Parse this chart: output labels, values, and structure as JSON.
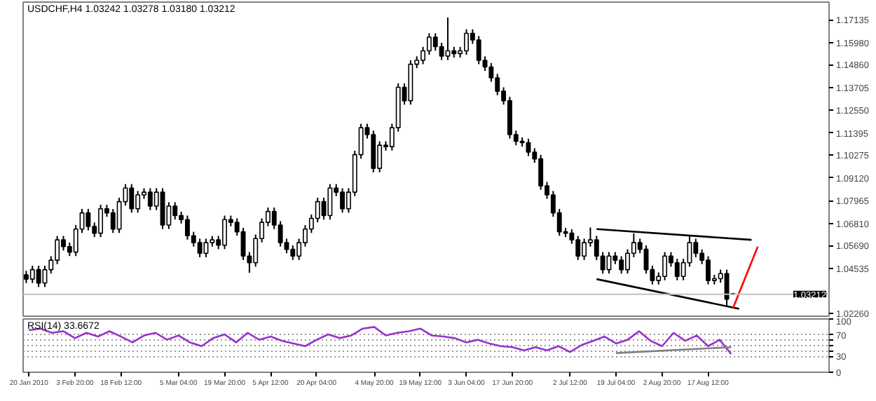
{
  "chart_data": [
    {
      "type": "candlestick",
      "title": "USDCHF,H4 1.03242 1.03278 1.03180 1.03212",
      "color": "#000000",
      "categories": [
        null,
        null,
        null,
        null,
        null,
        null,
        null,
        null,
        null,
        null,
        null,
        null,
        null,
        null,
        null,
        null,
        null,
        null,
        null,
        null,
        null,
        null,
        null,
        null,
        null,
        null,
        null,
        null,
        null,
        null,
        null,
        null,
        null,
        null,
        null,
        null,
        null,
        null,
        null,
        null,
        null,
        null,
        null,
        null,
        null,
        null,
        null,
        null,
        null,
        null,
        null,
        null,
        null,
        null,
        null,
        null,
        null,
        null,
        null,
        null,
        null,
        null,
        null,
        null,
        null,
        null,
        null,
        null,
        null,
        null,
        null,
        null,
        null,
        null,
        null,
        null,
        null,
        null,
        null,
        null,
        null,
        null,
        null,
        null,
        null,
        null,
        null,
        null,
        null,
        null,
        null,
        null,
        null,
        null,
        null,
        null,
        null,
        null,
        null,
        null,
        null,
        null,
        null,
        null,
        null,
        null,
        null,
        null,
        null,
        null,
        null,
        null,
        null,
        null,
        null,
        null,
        null,
        null,
        null,
        null,
        null,
        null,
        null,
        null,
        null,
        null,
        null,
        null,
        null,
        null
      ],
      "ohlc": [
        [
          1.042,
          1.044,
          1.0378,
          1.0398
        ],
        [
          1.0398,
          1.0466,
          1.0378,
          1.0446
        ],
        [
          1.0446,
          1.0466,
          1.0358,
          1.0378
        ],
        [
          1.0378,
          1.0466,
          1.0358,
          1.0446
        ],
        [
          1.0446,
          1.0514,
          1.0426,
          1.0494
        ],
        [
          1.0494,
          1.0617,
          1.0474,
          1.0597
        ],
        [
          1.0597,
          1.0617,
          1.0543,
          1.0563
        ],
        [
          1.0563,
          1.0583,
          1.0515,
          1.0535
        ],
        [
          1.0535,
          1.0672,
          1.0515,
          1.0652
        ],
        [
          1.0652,
          1.0754,
          1.0632,
          1.0734
        ],
        [
          1.0734,
          1.0754,
          1.0645,
          1.0665
        ],
        [
          1.0665,
          1.0685,
          1.0611,
          1.0631
        ],
        [
          1.0631,
          1.0775,
          1.0611,
          1.0755
        ],
        [
          1.0755,
          1.0775,
          1.0714,
          1.0734
        ],
        [
          1.0734,
          1.0754,
          1.0632,
          1.0652
        ],
        [
          1.0652,
          1.0811,
          1.0632,
          1.0791
        ],
        [
          1.0791,
          1.088,
          1.0771,
          1.086
        ],
        [
          1.086,
          1.088,
          1.0735,
          1.0755
        ],
        [
          1.0755,
          1.0845,
          1.0735,
          1.0825
        ],
        [
          1.0825,
          1.0859,
          1.0805,
          1.0839
        ],
        [
          1.0839,
          1.0859,
          1.0748,
          1.0768
        ],
        [
          1.0768,
          1.0859,
          1.0748,
          1.0839
        ],
        [
          1.0839,
          1.0859,
          1.0652,
          1.0672
        ],
        [
          1.0672,
          1.0788,
          1.0652,
          1.0768
        ],
        [
          1.0768,
          1.0788,
          1.07,
          1.072
        ],
        [
          1.072,
          1.074,
          1.068,
          1.07
        ],
        [
          1.07,
          1.072,
          1.0598,
          1.0618
        ],
        [
          1.0618,
          1.0638,
          1.0563,
          1.0583
        ],
        [
          1.0583,
          1.0603,
          1.0509,
          1.0529
        ],
        [
          1.0529,
          1.0603,
          1.0509,
          1.0583
        ],
        [
          1.0583,
          1.0617,
          1.0563,
          1.0597
        ],
        [
          1.0597,
          1.0617,
          1.055,
          1.057
        ],
        [
          1.057,
          1.072,
          1.055,
          1.07
        ],
        [
          1.07,
          1.072,
          1.0666,
          1.0686
        ],
        [
          1.0686,
          1.0706,
          1.0618,
          1.0638
        ],
        [
          1.0638,
          1.0658,
          1.0495,
          1.0515
        ],
        [
          1.0515,
          1.0535,
          1.043,
          1.0481
        ],
        [
          1.0481,
          1.0624,
          1.0461,
          1.0604
        ],
        [
          1.0604,
          1.0706,
          1.0584,
          1.0686
        ],
        [
          1.0686,
          1.0761,
          1.0666,
          1.0741
        ],
        [
          1.0741,
          1.0761,
          1.0652,
          1.0672
        ],
        [
          1.0672,
          1.0692,
          1.0563,
          1.0583
        ],
        [
          1.0583,
          1.0603,
          1.0529,
          1.0549
        ],
        [
          1.0549,
          1.0569,
          1.0495,
          1.0515
        ],
        [
          1.0515,
          1.0603,
          1.0495,
          1.0583
        ],
        [
          1.0583,
          1.0672,
          1.0563,
          1.0652
        ],
        [
          1.0652,
          1.0726,
          1.0632,
          1.0706
        ],
        [
          1.0706,
          1.0811,
          1.0686,
          1.0791
        ],
        [
          1.0791,
          1.0811,
          1.07,
          1.072
        ],
        [
          1.072,
          1.088,
          1.07,
          1.086
        ],
        [
          1.086,
          1.088,
          1.0819,
          1.0839
        ],
        [
          1.0839,
          1.0859,
          1.0735,
          1.0755
        ],
        [
          1.0755,
          1.0859,
          1.0735,
          1.0839
        ],
        [
          1.0839,
          1.1049,
          1.0819,
          1.1029
        ],
        [
          1.1029,
          1.1186,
          1.1009,
          1.1166
        ],
        [
          1.1166,
          1.1186,
          1.1111,
          1.1131
        ],
        [
          1.1131,
          1.1151,
          1.094,
          1.096
        ],
        [
          1.096,
          1.1097,
          1.094,
          1.1077
        ],
        [
          1.1077,
          1.1097,
          1.105,
          1.107
        ],
        [
          1.107,
          1.1186,
          1.105,
          1.1166
        ],
        [
          1.1166,
          1.1391,
          1.1146,
          1.1371
        ],
        [
          1.1371,
          1.1391,
          1.1283,
          1.1303
        ],
        [
          1.1303,
          1.1508,
          1.1283,
          1.1488
        ],
        [
          1.1488,
          1.1528,
          1.1468,
          1.1508
        ],
        [
          1.1508,
          1.1576,
          1.1488,
          1.1556
        ],
        [
          1.1556,
          1.1645,
          1.1536,
          1.1625
        ],
        [
          1.1625,
          1.1645,
          1.1557,
          1.1577
        ],
        [
          1.1577,
          1.1597,
          1.1509,
          1.1529
        ],
        [
          1.1529,
          1.1725,
          1.1509,
          1.1556
        ],
        [
          1.1556,
          1.1576,
          1.1522,
          1.1542
        ],
        [
          1.1542,
          1.1576,
          1.1522,
          1.1556
        ],
        [
          1.1556,
          1.1665,
          1.1536,
          1.1645
        ],
        [
          1.1645,
          1.1665,
          1.1591,
          1.1611
        ],
        [
          1.1611,
          1.1631,
          1.1488,
          1.1508
        ],
        [
          1.1508,
          1.1528,
          1.1454,
          1.1474
        ],
        [
          1.1474,
          1.1494,
          1.1399,
          1.1419
        ],
        [
          1.1419,
          1.1439,
          1.1331,
          1.1351
        ],
        [
          1.1351,
          1.1371,
          1.1283,
          1.1303
        ],
        [
          1.1303,
          1.1323,
          1.1111,
          1.1131
        ],
        [
          1.1131,
          1.1151,
          1.1077,
          1.1097
        ],
        [
          1.1097,
          1.1117,
          1.107,
          1.109
        ],
        [
          1.109,
          1.111,
          1.1022,
          1.1042
        ],
        [
          1.1042,
          1.1062,
          1.0988,
          1.1008
        ],
        [
          1.1008,
          1.1028,
          1.0851,
          1.0871
        ],
        [
          1.0871,
          1.0891,
          1.0805,
          1.0825
        ],
        [
          1.0825,
          1.0845,
          1.0714,
          1.0734
        ],
        [
          1.0734,
          1.0754,
          1.0618,
          1.0638
        ],
        [
          1.0638,
          1.0658,
          1.0611,
          1.0631
        ],
        [
          1.0631,
          1.0651,
          1.0577,
          1.0597
        ],
        [
          1.0597,
          1.0617,
          1.0495,
          1.0515
        ],
        [
          1.0515,
          1.0603,
          1.0495,
          1.0583
        ],
        [
          1.0583,
          1.066,
          1.0563,
          1.0597
        ],
        [
          1.0597,
          1.0617,
          1.0495,
          1.0515
        ],
        [
          1.0515,
          1.0535,
          1.0426,
          1.0446
        ],
        [
          1.0446,
          1.0535,
          1.0426,
          1.0515
        ],
        [
          1.0515,
          1.0535,
          1.0474,
          1.0494
        ],
        [
          1.0494,
          1.0514,
          1.0426,
          1.0446
        ],
        [
          1.0446,
          1.0549,
          1.0426,
          1.0529
        ],
        [
          1.0529,
          1.063,
          1.0509,
          1.0583
        ],
        [
          1.0583,
          1.0603,
          1.0529,
          1.0549
        ],
        [
          1.0549,
          1.0569,
          1.0426,
          1.0446
        ],
        [
          1.0446,
          1.0466,
          1.0371,
          1.0391
        ],
        [
          1.0391,
          1.0432,
          1.0371,
          1.0412
        ],
        [
          1.0412,
          1.0535,
          1.0392,
          1.0515
        ],
        [
          1.0515,
          1.0535,
          1.0461,
          1.0481
        ],
        [
          1.0481,
          1.0501,
          1.0392,
          1.0412
        ],
        [
          1.0412,
          1.0501,
          1.0392,
          1.0481
        ],
        [
          1.0481,
          1.062,
          1.0461,
          1.0583
        ],
        [
          1.0583,
          1.0603,
          1.0509,
          1.0529
        ],
        [
          1.0529,
          1.0549,
          1.0474,
          1.0494
        ],
        [
          1.0494,
          1.0514,
          1.0371,
          1.0391
        ],
        [
          1.0391,
          1.042,
          1.0371,
          1.04
        ],
        [
          1.04,
          1.0446,
          1.038,
          1.0426
        ],
        [
          1.0426,
          1.0446,
          1.026,
          1.0296
        ],
        [
          1.03242,
          1.03278,
          1.0318,
          1.03212
        ],
        null,
        null,
        null,
        null,
        null,
        null,
        null,
        null,
        null,
        null,
        null,
        null,
        null,
        null,
        null
      ],
      "series": [
        {
          "type": "line",
          "color": "#000000",
          "values": [
            null,
            null,
            null,
            null,
            null,
            null,
            null,
            null,
            null,
            null,
            null,
            null,
            null,
            null,
            null,
            null,
            null,
            null,
            null,
            null,
            null,
            null,
            null,
            null,
            null,
            null,
            null,
            null,
            null,
            null,
            null,
            null,
            null,
            null,
            null,
            null,
            null,
            null,
            null,
            null,
            null,
            null,
            null,
            null,
            null,
            null,
            null,
            null,
            null,
            null,
            null,
            null,
            null,
            null,
            null,
            null,
            null,
            null,
            null,
            null,
            null,
            null,
            null,
            null,
            null,
            null,
            null,
            null,
            null,
            null,
            null,
            null,
            null,
            null,
            null,
            null,
            null,
            null,
            null,
            null,
            null,
            null,
            null,
            null,
            null,
            null,
            null,
            null,
            null,
            null,
            null,
            null,
            1.0652,
            null,
            null,
            null,
            null,
            null,
            null,
            null,
            null,
            null,
            null,
            null,
            null,
            null,
            null,
            null,
            null,
            null,
            null,
            null,
            null,
            null,
            null,
            null,
            null,
            1.0597,
            null,
            null,
            null,
            null,
            null,
            null,
            null,
            null,
            null,
            null,
            null,
            null
          ]
        },
        {
          "type": "line",
          "color": "#000000",
          "values": [
            null,
            null,
            null,
            null,
            null,
            null,
            null,
            null,
            null,
            null,
            null,
            null,
            null,
            null,
            null,
            null,
            null,
            null,
            null,
            null,
            null,
            null,
            null,
            null,
            null,
            null,
            null,
            null,
            null,
            null,
            null,
            null,
            null,
            null,
            null,
            null,
            null,
            null,
            null,
            null,
            null,
            null,
            null,
            null,
            null,
            null,
            null,
            null,
            null,
            null,
            null,
            null,
            null,
            null,
            null,
            null,
            null,
            null,
            null,
            null,
            null,
            null,
            null,
            null,
            null,
            null,
            null,
            null,
            null,
            null,
            null,
            null,
            null,
            null,
            null,
            null,
            null,
            null,
            null,
            null,
            null,
            null,
            null,
            null,
            null,
            null,
            null,
            null,
            null,
            null,
            null,
            null,
            1.0398,
            null,
            null,
            null,
            null,
            null,
            null,
            null,
            null,
            null,
            null,
            null,
            null,
            null,
            null,
            null,
            null,
            null,
            null,
            null,
            null,
            null,
            null,
            1.0247,
            null,
            null,
            null,
            null,
            null,
            null,
            null,
            null,
            null,
            null,
            null,
            null,
            null,
            null
          ]
        },
        {
          "type": "line",
          "color": "#ff0000",
          "values": [
            null,
            null,
            null,
            null,
            null,
            null,
            null,
            null,
            null,
            null,
            null,
            null,
            null,
            null,
            null,
            null,
            null,
            null,
            null,
            null,
            null,
            null,
            null,
            null,
            null,
            null,
            null,
            null,
            null,
            null,
            null,
            null,
            null,
            null,
            null,
            null,
            null,
            null,
            null,
            null,
            null,
            null,
            null,
            null,
            null,
            null,
            null,
            null,
            null,
            null,
            null,
            null,
            null,
            null,
            null,
            null,
            null,
            null,
            null,
            null,
            null,
            null,
            null,
            null,
            null,
            null,
            null,
            null,
            null,
            null,
            null,
            null,
            null,
            null,
            null,
            null,
            null,
            null,
            null,
            null,
            null,
            null,
            null,
            null,
            null,
            null,
            null,
            null,
            null,
            null,
            null,
            null,
            null,
            null,
            null,
            null,
            null,
            null,
            null,
            null,
            null,
            null,
            null,
            null,
            null,
            null,
            null,
            null,
            null,
            null,
            null,
            null,
            null,
            null,
            1.025,
            null,
            null,
            null,
            1.0563,
            null,
            null,
            null,
            null,
            null,
            null,
            null,
            null,
            null,
            null,
            null
          ]
        }
      ],
      "ylim": [
        1.021,
        1.1803
      ],
      "yticks": [
        1.17135,
        {
          "value": 1.1598,
          "label": "1.15980"
        },
        {
          "value": 1.1486,
          "label": "1.14860"
        },
        1.13705,
        {
          "value": 1.1255,
          "label": "1.12550"
        },
        1.11395,
        1.10275,
        {
          "value": 1.0912,
          "label": "1.09120"
        },
        1.07965,
        {
          "value": 1.0681,
          "label": "1.06810"
        },
        {
          "value": 1.0569,
          "label": "1.05690"
        },
        1.04535,
        {
          "value": 1.0226,
          "label": "1.02260"
        }
      ],
      "ref_lines": [
        {
          "axis": "y",
          "value": 1.03212,
          "label": "1.03212",
          "color": "#c0c0c0"
        }
      ],
      "tick_labels": "y"
    },
    {
      "type": "line",
      "title": "RSI(14) 33.6672",
      "series": [
        {
          "values": [
            79,
            82,
            74,
            77,
            64,
            74,
            67,
            77,
            67,
            56,
            69,
            74,
            61,
            69,
            56,
            49,
            64,
            71,
            56,
            74,
            61,
            67,
            59,
            54,
            49,
            61,
            71,
            64,
            69,
            82,
            85,
            69,
            74,
            77,
            82,
            69,
            67,
            64,
            56,
            61,
            54,
            49,
            47,
            41,
            47,
            41,
            49,
            38,
            51,
            59,
            67,
            54,
            61,
            77,
            59,
            49,
            74,
            59,
            69,
            49,
            61,
            34,
            null,
            null,
            null,
            null,
            null,
            null,
            null,
            null
          ],
          "color": "#9932cc"
        },
        {
          "values": [
            null,
            null,
            null,
            null,
            null,
            null,
            null,
            null,
            null,
            null,
            null,
            null,
            null,
            null,
            null,
            null,
            null,
            null,
            null,
            null,
            null,
            null,
            null,
            null,
            null,
            null,
            null,
            null,
            null,
            null,
            null,
            null,
            null,
            null,
            null,
            null,
            null,
            null,
            null,
            null,
            null,
            null,
            null,
            null,
            null,
            null,
            null,
            null,
            null,
            null,
            null,
            36,
            null,
            null,
            null,
            null,
            null,
            null,
            null,
            null,
            null,
            47,
            null,
            null,
            null,
            null,
            null,
            null,
            null,
            null
          ],
          "color": "#808080"
        }
      ],
      "categories": [
        "20 Jan 2010",
        null,
        null,
        null,
        "3 Feb 20:00",
        null,
        null,
        null,
        "18 Feb 12:00",
        null,
        null,
        null,
        null,
        "5 Mar 04:00",
        null,
        null,
        null,
        "19 Mar 20:00",
        null,
        null,
        null,
        "5 Apr 12:00",
        null,
        null,
        null,
        "20 Apr 04:00",
        null,
        null,
        null,
        null,
        "4 May 20:00",
        null,
        null,
        null,
        "19 May 12:00",
        null,
        null,
        null,
        "3 Jun 04:00",
        null,
        null,
        null,
        "17 Jun 20:00",
        null,
        null,
        null,
        null,
        "2 Jul 12:00",
        null,
        null,
        null,
        "19 Jul 04:00",
        null,
        null,
        null,
        "2 Aug 20:00",
        null,
        null,
        null,
        "17 Aug 12:00",
        null,
        null,
        null,
        null,
        null,
        null,
        null,
        null,
        null,
        null
      ],
      "ylim": [
        0,
        100
      ],
      "yticks": [
        100,
        70,
        {
          "value": 60,
          "label": null
        },
        {
          "value": 50,
          "label": null
        },
        {
          "value": 40,
          "label": null
        },
        30,
        0
      ],
      "grid": "y"
    }
  ]
}
